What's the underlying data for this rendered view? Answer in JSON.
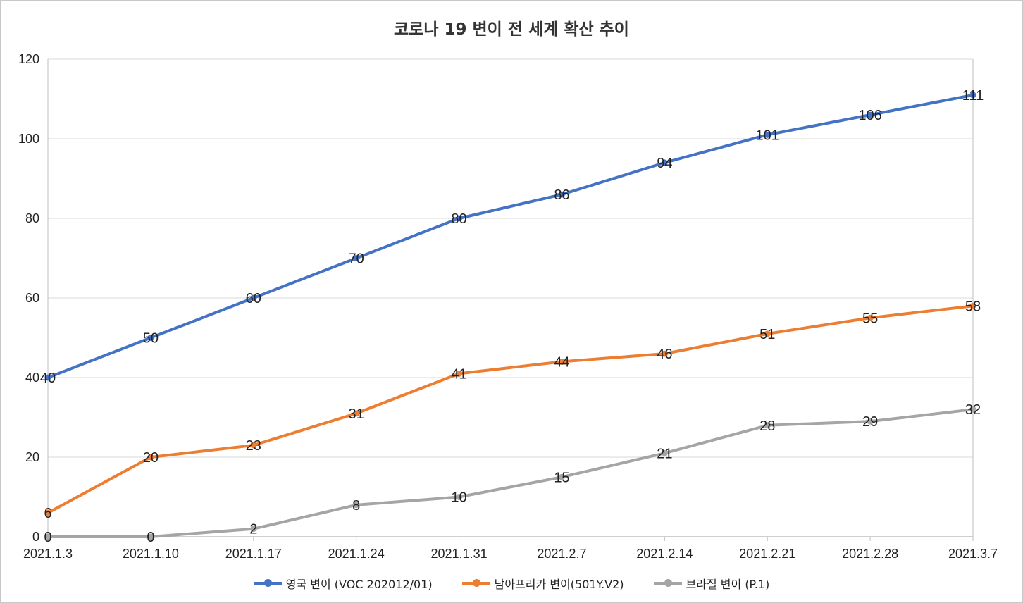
{
  "chart_data": {
    "type": "line",
    "title": "코로나 19 변이 전 세계 확산 추이",
    "xlabel": "",
    "ylabel": "",
    "ylim": [
      0,
      120
    ],
    "yticks": [
      "0",
      "20",
      "40",
      "60",
      "80",
      "100",
      "120"
    ],
    "categories": [
      "2021.1.3",
      "2021.1.10",
      "2021.1.17",
      "2021.1.24",
      "2021.1.31",
      "2021.2.7",
      "2021.2.14",
      "2021.2.21",
      "2021.2.28",
      "2021.3.7"
    ],
    "grid": true,
    "legend_position": "bottom",
    "series": [
      {
        "name": "영국 변이 (VOC 202012/01)",
        "color": "#4472C4",
        "values": [
          40,
          50,
          60,
          70,
          80,
          86,
          94,
          101,
          106,
          111
        ]
      },
      {
        "name": "남아프리카 변이(501Y.V2)",
        "color": "#ED7D31",
        "values": [
          6,
          20,
          23,
          31,
          41,
          44,
          46,
          51,
          55,
          58
        ]
      },
      {
        "name": "브라질 변이 (P.1)",
        "color": "#A5A5A5",
        "values": [
          0,
          0,
          2,
          8,
          10,
          15,
          21,
          28,
          29,
          32
        ]
      }
    ]
  }
}
